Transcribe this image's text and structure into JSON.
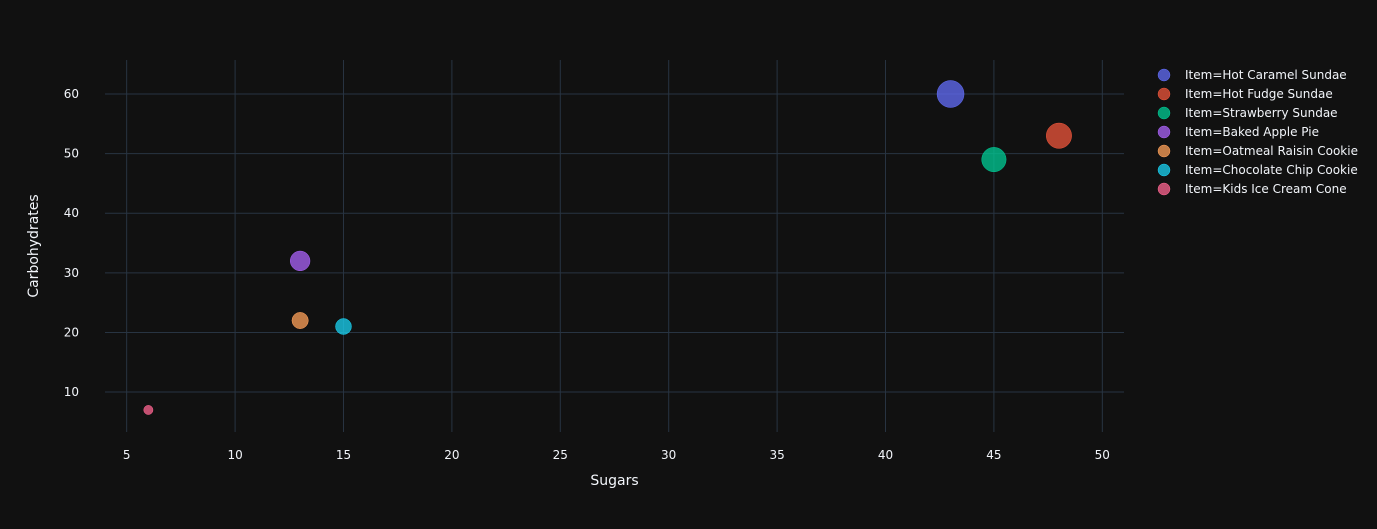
{
  "chart_data": {
    "type": "scatter",
    "xlabel": "Sugars",
    "ylabel": "Carbohydrates",
    "xlim": [
      4,
      51
    ],
    "ylim": [
      3.3,
      65.7
    ],
    "x_ticks": [
      5,
      10,
      15,
      20,
      25,
      30,
      35,
      40,
      45,
      50
    ],
    "y_ticks": [
      10,
      20,
      30,
      40,
      50,
      60
    ],
    "grid": true,
    "legend_position": "top-right outside",
    "series": [
      {
        "name": "Item=Hot Caramel Sundae",
        "color": "#636efa",
        "points": [
          {
            "x": 43,
            "y": 60,
            "size": 60
          }
        ]
      },
      {
        "name": "Item=Hot Fudge Sundae",
        "color": "#EF553B",
        "points": [
          {
            "x": 48,
            "y": 53,
            "size": 53
          }
        ]
      },
      {
        "name": "Item=Strawberry Sundae",
        "color": "#00cc96",
        "points": [
          {
            "x": 45,
            "y": 49,
            "size": 49
          }
        ]
      },
      {
        "name": "Item=Baked Apple Pie",
        "color": "#ab63fa",
        "points": [
          {
            "x": 13,
            "y": 32,
            "size": 32
          }
        ]
      },
      {
        "name": "Item=Oatmeal Raisin Cookie",
        "color": "#FFA15A",
        "points": [
          {
            "x": 13,
            "y": 22,
            "size": 22
          }
        ]
      },
      {
        "name": "Item=Chocolate Chip Cookie",
        "color": "#19d3f3",
        "points": [
          {
            "x": 15,
            "y": 21,
            "size": 21
          }
        ]
      },
      {
        "name": "Item=Kids Ice Cream Cone",
        "color": "#FF6692",
        "points": [
          {
            "x": 6,
            "y": 7,
            "size": 7
          }
        ]
      }
    ]
  }
}
